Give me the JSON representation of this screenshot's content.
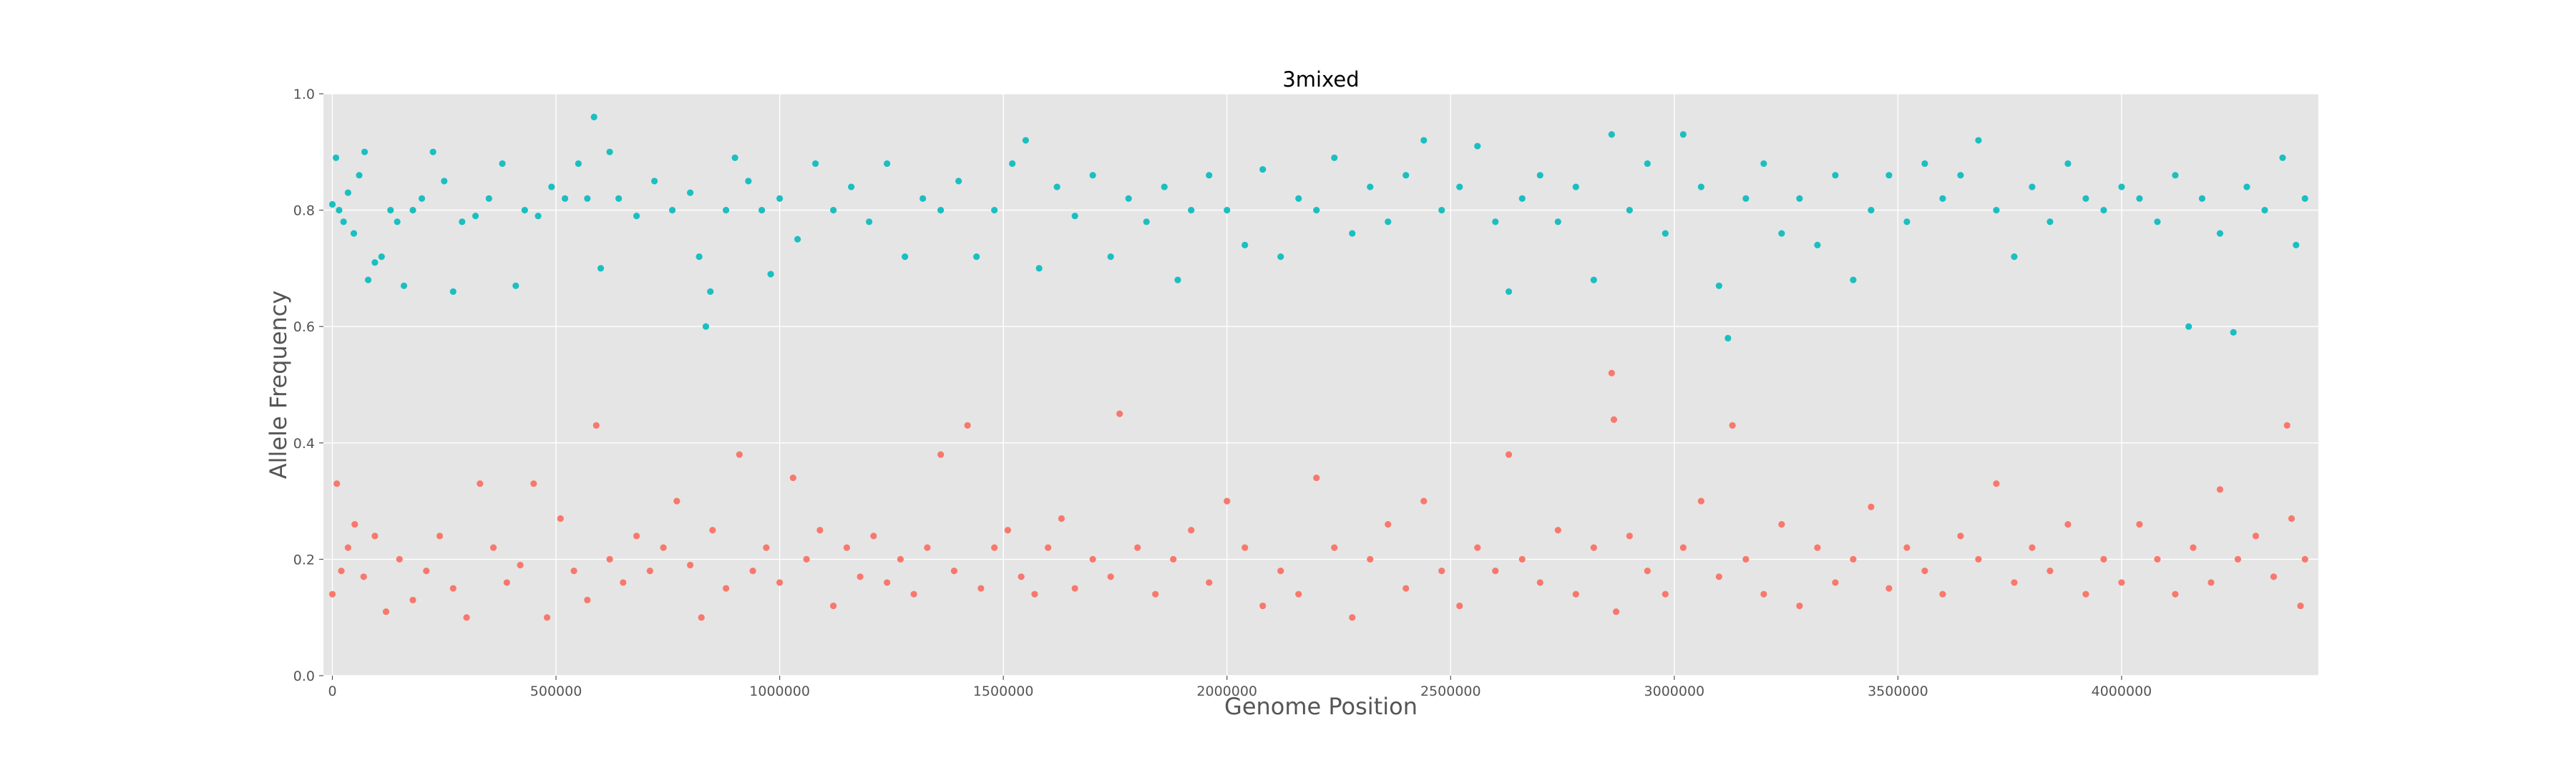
{
  "colors": {
    "plot_background": "#e5e5e5",
    "grid": "#ffffff",
    "high_series": "#1bbfc0",
    "low_series": "#f8786d",
    "text": "#555555"
  },
  "chart_data": {
    "type": "scatter",
    "title": "3mixed",
    "xlabel": "Genome Position",
    "ylabel": "Allele Frequency",
    "xlim": [
      -20000,
      4440000
    ],
    "ylim": [
      0.0,
      1.0
    ],
    "xticks": [
      0,
      500000,
      1000000,
      1500000,
      2000000,
      2500000,
      3000000,
      3500000,
      4000000
    ],
    "xtick_labels": [
      "0",
      "500000",
      "1000000",
      "1500000",
      "2000000",
      "2500000",
      "3000000",
      "3500000",
      "4000000"
    ],
    "yticks": [
      0.0,
      0.2,
      0.4,
      0.6,
      0.8,
      1.0
    ],
    "ytick_labels": [
      "0.0",
      "0.2",
      "0.4",
      "0.6",
      "0.8",
      "1.0"
    ],
    "grid": true,
    "style": "ggplot",
    "series": [
      {
        "color": "#1bbfc0",
        "points": [
          [
            0,
            0.81
          ],
          [
            8000,
            0.89
          ],
          [
            15000,
            0.8
          ],
          [
            25000,
            0.78
          ],
          [
            35000,
            0.83
          ],
          [
            48000,
            0.76
          ],
          [
            60000,
            0.86
          ],
          [
            72000,
            0.9
          ],
          [
            80000,
            0.68
          ],
          [
            95000,
            0.71
          ],
          [
            110000,
            0.72
          ],
          [
            130000,
            0.8
          ],
          [
            145000,
            0.78
          ],
          [
            160000,
            0.67
          ],
          [
            180000,
            0.8
          ],
          [
            200000,
            0.82
          ],
          [
            225000,
            0.9
          ],
          [
            250000,
            0.85
          ],
          [
            270000,
            0.66
          ],
          [
            290000,
            0.78
          ],
          [
            320000,
            0.79
          ],
          [
            350000,
            0.82
          ],
          [
            380000,
            0.88
          ],
          [
            410000,
            0.67
          ],
          [
            430000,
            0.8
          ],
          [
            460000,
            0.79
          ],
          [
            490000,
            0.84
          ],
          [
            520000,
            0.82
          ],
          [
            550000,
            0.88
          ],
          [
            570000,
            0.82
          ],
          [
            585000,
            0.96
          ],
          [
            600000,
            0.7
          ],
          [
            620000,
            0.9
          ],
          [
            640000,
            0.82
          ],
          [
            680000,
            0.79
          ],
          [
            720000,
            0.85
          ],
          [
            760000,
            0.8
          ],
          [
            800000,
            0.83
          ],
          [
            820000,
            0.72
          ],
          [
            835000,
            0.6
          ],
          [
            845000,
            0.66
          ],
          [
            880000,
            0.8
          ],
          [
            900000,
            0.89
          ],
          [
            930000,
            0.85
          ],
          [
            960000,
            0.8
          ],
          [
            980000,
            0.69
          ],
          [
            1000000,
            0.82
          ],
          [
            1040000,
            0.75
          ],
          [
            1080000,
            0.88
          ],
          [
            1120000,
            0.8
          ],
          [
            1160000,
            0.84
          ],
          [
            1200000,
            0.78
          ],
          [
            1240000,
            0.88
          ],
          [
            1280000,
            0.72
          ],
          [
            1320000,
            0.82
          ],
          [
            1360000,
            0.8
          ],
          [
            1400000,
            0.85
          ],
          [
            1440000,
            0.72
          ],
          [
            1480000,
            0.8
          ],
          [
            1520000,
            0.88
          ],
          [
            1550000,
            0.92
          ],
          [
            1580000,
            0.7
          ],
          [
            1620000,
            0.84
          ],
          [
            1660000,
            0.79
          ],
          [
            1700000,
            0.86
          ],
          [
            1740000,
            0.72
          ],
          [
            1780000,
            0.82
          ],
          [
            1820000,
            0.78
          ],
          [
            1860000,
            0.84
          ],
          [
            1890000,
            0.68
          ],
          [
            1920000,
            0.8
          ],
          [
            1960000,
            0.86
          ],
          [
            2000000,
            0.8
          ],
          [
            2040000,
            0.74
          ],
          [
            2080000,
            0.87
          ],
          [
            2120000,
            0.72
          ],
          [
            2160000,
            0.82
          ],
          [
            2200000,
            0.8
          ],
          [
            2240000,
            0.89
          ],
          [
            2280000,
            0.76
          ],
          [
            2320000,
            0.84
          ],
          [
            2360000,
            0.78
          ],
          [
            2400000,
            0.86
          ],
          [
            2440000,
            0.92
          ],
          [
            2480000,
            0.8
          ],
          [
            2520000,
            0.84
          ],
          [
            2560000,
            0.91
          ],
          [
            2600000,
            0.78
          ],
          [
            2630000,
            0.66
          ],
          [
            2660000,
            0.82
          ],
          [
            2700000,
            0.86
          ],
          [
            2740000,
            0.78
          ],
          [
            2780000,
            0.84
          ],
          [
            2820000,
            0.68
          ],
          [
            2860000,
            0.93
          ],
          [
            2900000,
            0.8
          ],
          [
            2940000,
            0.88
          ],
          [
            2980000,
            0.76
          ],
          [
            3020000,
            0.93
          ],
          [
            3060000,
            0.84
          ],
          [
            3100000,
            0.67
          ],
          [
            3120000,
            0.58
          ],
          [
            3160000,
            0.82
          ],
          [
            3200000,
            0.88
          ],
          [
            3240000,
            0.76
          ],
          [
            3280000,
            0.82
          ],
          [
            3320000,
            0.74
          ],
          [
            3360000,
            0.86
          ],
          [
            3400000,
            0.68
          ],
          [
            3440000,
            0.8
          ],
          [
            3480000,
            0.86
          ],
          [
            3520000,
            0.78
          ],
          [
            3560000,
            0.88
          ],
          [
            3600000,
            0.82
          ],
          [
            3640000,
            0.86
          ],
          [
            3680000,
            0.92
          ],
          [
            3720000,
            0.8
          ],
          [
            3760000,
            0.72
          ],
          [
            3800000,
            0.84
          ],
          [
            3840000,
            0.78
          ],
          [
            3880000,
            0.88
          ],
          [
            3920000,
            0.82
          ],
          [
            3960000,
            0.8
          ],
          [
            4000000,
            0.84
          ],
          [
            4040000,
            0.82
          ],
          [
            4080000,
            0.78
          ],
          [
            4120000,
            0.86
          ],
          [
            4150000,
            0.6
          ],
          [
            4180000,
            0.82
          ],
          [
            4220000,
            0.76
          ],
          [
            4250000,
            0.59
          ],
          [
            4280000,
            0.84
          ],
          [
            4320000,
            0.8
          ],
          [
            4360000,
            0.89
          ],
          [
            4390000,
            0.74
          ],
          [
            4410000,
            0.82
          ]
        ]
      },
      {
        "color": "#f8786d",
        "points": [
          [
            0,
            0.14
          ],
          [
            10000,
            0.33
          ],
          [
            20000,
            0.18
          ],
          [
            35000,
            0.22
          ],
          [
            50000,
            0.26
          ],
          [
            70000,
            0.17
          ],
          [
            95000,
            0.24
          ],
          [
            120000,
            0.11
          ],
          [
            150000,
            0.2
          ],
          [
            180000,
            0.13
          ],
          [
            210000,
            0.18
          ],
          [
            240000,
            0.24
          ],
          [
            270000,
            0.15
          ],
          [
            300000,
            0.1
          ],
          [
            330000,
            0.33
          ],
          [
            360000,
            0.22
          ],
          [
            390000,
            0.16
          ],
          [
            420000,
            0.19
          ],
          [
            450000,
            0.33
          ],
          [
            480000,
            0.1
          ],
          [
            510000,
            0.27
          ],
          [
            540000,
            0.18
          ],
          [
            570000,
            0.13
          ],
          [
            590000,
            0.43
          ],
          [
            620000,
            0.2
          ],
          [
            650000,
            0.16
          ],
          [
            680000,
            0.24
          ],
          [
            710000,
            0.18
          ],
          [
            740000,
            0.22
          ],
          [
            770000,
            0.3
          ],
          [
            800000,
            0.19
          ],
          [
            825000,
            0.1
          ],
          [
            850000,
            0.25
          ],
          [
            880000,
            0.15
          ],
          [
            910000,
            0.38
          ],
          [
            940000,
            0.18
          ],
          [
            970000,
            0.22
          ],
          [
            1000000,
            0.16
          ],
          [
            1030000,
            0.34
          ],
          [
            1060000,
            0.2
          ],
          [
            1090000,
            0.25
          ],
          [
            1120000,
            0.12
          ],
          [
            1150000,
            0.22
          ],
          [
            1180000,
            0.17
          ],
          [
            1210000,
            0.24
          ],
          [
            1240000,
            0.16
          ],
          [
            1270000,
            0.2
          ],
          [
            1300000,
            0.14
          ],
          [
            1330000,
            0.22
          ],
          [
            1360000,
            0.38
          ],
          [
            1390000,
            0.18
          ],
          [
            1420000,
            0.43
          ],
          [
            1450000,
            0.15
          ],
          [
            1480000,
            0.22
          ],
          [
            1510000,
            0.25
          ],
          [
            1540000,
            0.17
          ],
          [
            1570000,
            0.14
          ],
          [
            1600000,
            0.22
          ],
          [
            1630000,
            0.27
          ],
          [
            1660000,
            0.15
          ],
          [
            1700000,
            0.2
          ],
          [
            1740000,
            0.17
          ],
          [
            1760000,
            0.45
          ],
          [
            1800000,
            0.22
          ],
          [
            1840000,
            0.14
          ],
          [
            1880000,
            0.2
          ],
          [
            1920000,
            0.25
          ],
          [
            1960000,
            0.16
          ],
          [
            2000000,
            0.3
          ],
          [
            2040000,
            0.22
          ],
          [
            2080000,
            0.12
          ],
          [
            2120000,
            0.18
          ],
          [
            2160000,
            0.14
          ],
          [
            2200000,
            0.34
          ],
          [
            2240000,
            0.22
          ],
          [
            2280000,
            0.1
          ],
          [
            2320000,
            0.2
          ],
          [
            2360000,
            0.26
          ],
          [
            2400000,
            0.15
          ],
          [
            2440000,
            0.3
          ],
          [
            2480000,
            0.18
          ],
          [
            2520000,
            0.12
          ],
          [
            2560000,
            0.22
          ],
          [
            2600000,
            0.18
          ],
          [
            2630000,
            0.38
          ],
          [
            2660000,
            0.2
          ],
          [
            2700000,
            0.16
          ],
          [
            2740000,
            0.25
          ],
          [
            2780000,
            0.14
          ],
          [
            2820000,
            0.22
          ],
          [
            2860000,
            0.52
          ],
          [
            2865000,
            0.44
          ],
          [
            2870000,
            0.11
          ],
          [
            2900000,
            0.24
          ],
          [
            2940000,
            0.18
          ],
          [
            2980000,
            0.14
          ],
          [
            3020000,
            0.22
          ],
          [
            3060000,
            0.3
          ],
          [
            3100000,
            0.17
          ],
          [
            3130000,
            0.43
          ],
          [
            3160000,
            0.2
          ],
          [
            3200000,
            0.14
          ],
          [
            3240000,
            0.26
          ],
          [
            3280000,
            0.12
          ],
          [
            3320000,
            0.22
          ],
          [
            3360000,
            0.16
          ],
          [
            3400000,
            0.2
          ],
          [
            3440000,
            0.29
          ],
          [
            3480000,
            0.15
          ],
          [
            3520000,
            0.22
          ],
          [
            3560000,
            0.18
          ],
          [
            3600000,
            0.14
          ],
          [
            3640000,
            0.24
          ],
          [
            3680000,
            0.2
          ],
          [
            3720000,
            0.33
          ],
          [
            3760000,
            0.16
          ],
          [
            3800000,
            0.22
          ],
          [
            3840000,
            0.18
          ],
          [
            3880000,
            0.26
          ],
          [
            3920000,
            0.14
          ],
          [
            3960000,
            0.2
          ],
          [
            4000000,
            0.16
          ],
          [
            4040000,
            0.26
          ],
          [
            4080000,
            0.2
          ],
          [
            4120000,
            0.14
          ],
          [
            4160000,
            0.22
          ],
          [
            4200000,
            0.16
          ],
          [
            4220000,
            0.32
          ],
          [
            4260000,
            0.2
          ],
          [
            4300000,
            0.24
          ],
          [
            4340000,
            0.17
          ],
          [
            4370000,
            0.43
          ],
          [
            4380000,
            0.27
          ],
          [
            4400000,
            0.12
          ],
          [
            4410000,
            0.2
          ]
        ]
      }
    ]
  }
}
